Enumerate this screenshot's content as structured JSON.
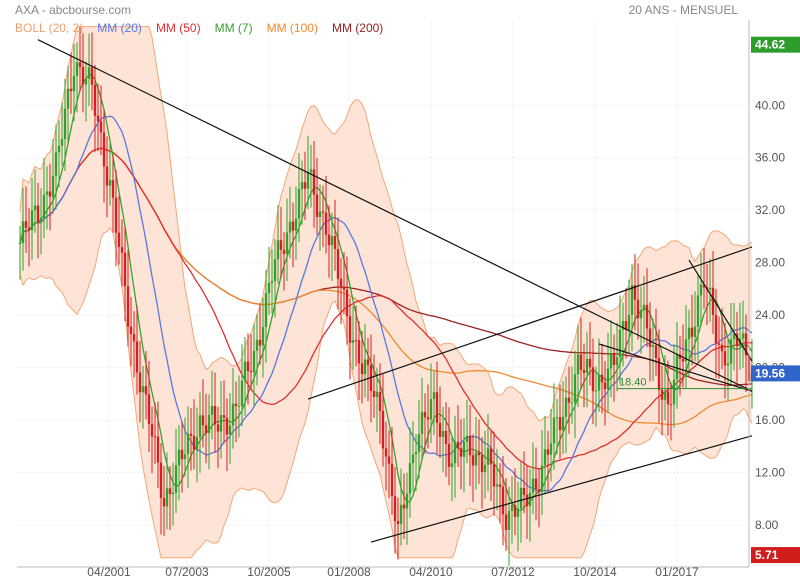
{
  "header": {
    "title": "AXA - abcbourse.com",
    "period": "20 ANS - MENSUEL"
  },
  "legend": [
    {
      "label": "BOLL (20, 2)",
      "color": "#f0a070"
    },
    {
      "label": "MM (20)",
      "color": "#5a78e0"
    },
    {
      "label": "MM (50)",
      "color": "#e03030"
    },
    {
      "label": "MM (7)",
      "color": "#3aa030"
    },
    {
      "label": "MM (100)",
      "color": "#f08a30"
    },
    {
      "label": "MM (200)",
      "color": "#992222"
    }
  ],
  "chart_data": {
    "type": "candlestick",
    "title": "AXA",
    "period": "20 ANS - MENSUEL",
    "ylim": [
      5.71,
      44.62
    ],
    "y_ticks": [
      "8.00",
      "12.00",
      "16.00",
      "20.00",
      "24.00",
      "28.00",
      "32.00",
      "36.00",
      "40.00"
    ],
    "x_ticks": [
      "04/2001",
      "07/2003",
      "10/2005",
      "01/2008",
      "04/2010",
      "07/2012",
      "10/2014",
      "01/2017"
    ],
    "max_label": "44.62",
    "min_label": "5.71",
    "last_label": "19.56",
    "support_label": "18.40",
    "colors": {
      "up": "#33a02c",
      "down": "#d42020",
      "bb_fill": "#fde4d6",
      "bb_line": "#f3a777",
      "trend": "#111111",
      "support": "#2f8a2f",
      "max_bg": "#2e9d2e",
      "min_bg": "#d11c1c",
      "last_bg": "#2f64c8"
    },
    "price_path_year_close": [
      {
        "date": "1999",
        "value": 29.5
      },
      {
        "date": "2000",
        "value": 38.5
      },
      {
        "date": "2001",
        "value": 25.5
      },
      {
        "date": "2002",
        "value": 11
      },
      {
        "date": "2003",
        "value": 15.5
      },
      {
        "date": "2004",
        "value": 18
      },
      {
        "date": "2005",
        "value": 25
      },
      {
        "date": "2006",
        "value": 30.5
      },
      {
        "date": "2007",
        "value": 30.5
      },
      {
        "date": "2008",
        "value": 16.5
      },
      {
        "date": "2009",
        "value": 16.5
      },
      {
        "date": "2010",
        "value": 12.5
      },
      {
        "date": "2011",
        "value": 10
      },
      {
        "date": "2012",
        "value": 13.2
      },
      {
        "date": "2013",
        "value": 20
      },
      {
        "date": "2014",
        "value": 19.3
      },
      {
        "date": "2015",
        "value": 25
      },
      {
        "date": "2016",
        "value": 22.5
      },
      {
        "date": "2017",
        "value": 25
      },
      {
        "date": "2018",
        "value": 22.5
      },
      {
        "date": "2019",
        "value": 19.56
      }
    ]
  }
}
